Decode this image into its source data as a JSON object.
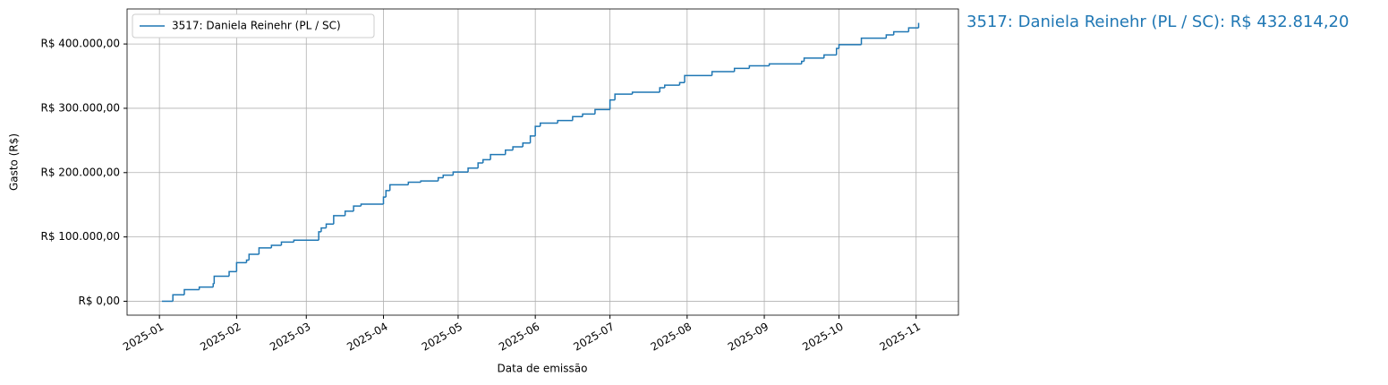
{
  "chart_data": {
    "type": "step",
    "annotation": "3517: Daniela Reinehr (PL / SC): R$ 432.814,20",
    "xlabel": "Data de emissão",
    "ylabel": "Gasto (R$)",
    "legend": "upper left",
    "grid": true,
    "xlim": [
      -13,
      321
    ],
    "xticks": [
      {
        "value": 0,
        "label": "2025-01"
      },
      {
        "value": 31,
        "label": "2025-02"
      },
      {
        "value": 59,
        "label": "2025-03"
      },
      {
        "value": 90,
        "label": "2025-04"
      },
      {
        "value": 120,
        "label": "2025-05"
      },
      {
        "value": 151,
        "label": "2025-06"
      },
      {
        "value": 181,
        "label": "2025-07"
      },
      {
        "value": 212,
        "label": "2025-08"
      },
      {
        "value": 243,
        "label": "2025-09"
      },
      {
        "value": 273,
        "label": "2025-10"
      },
      {
        "value": 304,
        "label": "2025-11"
      }
    ],
    "ylim": [
      -21641,
      454455
    ],
    "yticks": [
      {
        "value": 0,
        "label": "R$ 0,00"
      },
      {
        "value": 100000,
        "label": "R$ 100.000,00"
      },
      {
        "value": 200000,
        "label": "R$ 200.000,00"
      },
      {
        "value": 300000,
        "label": "R$ 300.000,00"
      },
      {
        "value": 400000,
        "label": "R$ 400.000,00"
      }
    ],
    "series": [
      {
        "name": "3517: Daniela Reinehr (PL / SC)",
        "color": "#1f77b4",
        "x": [
          1,
          5.4,
          10,
          16,
          21.6,
          22,
          28,
          31,
          35,
          36,
          40,
          45,
          49,
          54,
          64,
          65,
          67,
          70,
          74.6,
          78,
          81,
          90,
          91,
          92.6,
          100,
          105,
          112,
          114,
          118,
          124,
          128,
          130,
          133,
          139,
          142,
          146,
          149,
          151,
          153,
          160,
          166,
          170,
          175,
          181,
          183,
          190,
          201,
          203,
          209,
          211,
          222,
          231,
          237,
          245,
          258,
          259,
          267,
          272,
          273,
          282,
          292,
          295,
          301,
          305
        ],
        "values": [
          0,
          10000,
          18000,
          22000,
          27000,
          39000,
          46000,
          60000,
          64000,
          73000,
          83000,
          87000,
          92000,
          95000,
          108000,
          114000,
          120000,
          133000,
          140000,
          148000,
          151000,
          162000,
          172000,
          181000,
          185000,
          187000,
          192000,
          196000,
          201000,
          207000,
          215000,
          220000,
          228000,
          235000,
          240000,
          246000,
          257000,
          272000,
          277000,
          281000,
          287000,
          291000,
          298000,
          313000,
          322000,
          325000,
          332000,
          336000,
          340000,
          351000,
          357000,
          362000,
          366000,
          369000,
          373000,
          378000,
          383000,
          393000,
          399000,
          409000,
          414000,
          419000,
          425000,
          432814.2
        ]
      }
    ]
  }
}
